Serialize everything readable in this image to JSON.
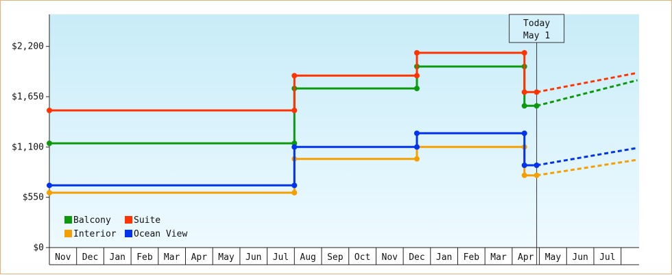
{
  "chart_data": {
    "type": "line",
    "step": true,
    "title": "",
    "xlabel": "",
    "ylabel": "",
    "ylim": [
      0,
      2550
    ],
    "yticks": [
      0,
      550,
      1100,
      1650,
      2200
    ],
    "ytick_labels": [
      "$0",
      "$550",
      "$1,100",
      "$1,650",
      "$2,200"
    ],
    "x_range": [
      0,
      21.6
    ],
    "months": [
      "Nov",
      "Dec",
      "Jan",
      "Feb",
      "Mar",
      "Apr",
      "May",
      "Jun",
      "Jul",
      "Aug",
      "Sep",
      "Oct",
      "Nov",
      "Dec",
      "Jan",
      "Feb",
      "Mar",
      "Apr",
      "May",
      "Jun",
      "Jul"
    ],
    "today": {
      "x": 17.9,
      "line1": "Today",
      "line2": "May 1"
    },
    "legend": {
      "placement": "bottom-left"
    },
    "background": {
      "top": "#c8ecf8",
      "bottom": "#eefaff"
    },
    "series": [
      {
        "name": "Balcony",
        "color": "#0c9a0c",
        "points": [
          [
            0,
            1140
          ],
          [
            9,
            1140
          ],
          [
            9,
            1740
          ],
          [
            13.5,
            1740
          ],
          [
            13.5,
            1980
          ],
          [
            17.45,
            1980
          ],
          [
            17.45,
            1550
          ],
          [
            17.9,
            1550
          ]
        ],
        "projection": [
          [
            17.9,
            1550
          ],
          [
            21.6,
            1830
          ]
        ]
      },
      {
        "name": "Suite",
        "color": "#ff3300",
        "points": [
          [
            0,
            1500
          ],
          [
            9,
            1500
          ],
          [
            9,
            1880
          ],
          [
            13.5,
            1880
          ],
          [
            13.5,
            2130
          ],
          [
            17.45,
            2130
          ],
          [
            17.45,
            1700
          ],
          [
            17.9,
            1700
          ]
        ],
        "projection": [
          [
            17.9,
            1700
          ],
          [
            21.6,
            1910
          ]
        ]
      },
      {
        "name": "Interior",
        "color": "#f5a000",
        "points": [
          [
            0,
            600
          ],
          [
            9,
            600
          ],
          [
            9,
            970
          ],
          [
            13.5,
            970
          ],
          [
            13.5,
            1100
          ],
          [
            17.45,
            1100
          ],
          [
            17.45,
            790
          ],
          [
            17.9,
            790
          ]
        ],
        "projection": [
          [
            17.9,
            790
          ],
          [
            21.6,
            960
          ]
        ]
      },
      {
        "name": "Ocean View",
        "color": "#0033ee",
        "points": [
          [
            0,
            680
          ],
          [
            9,
            680
          ],
          [
            9,
            1100
          ],
          [
            13.5,
            1100
          ],
          [
            13.5,
            1250
          ],
          [
            17.45,
            1250
          ],
          [
            17.45,
            900
          ],
          [
            17.9,
            900
          ]
        ],
        "projection": [
          [
            17.9,
            900
          ],
          [
            21.6,
            1090
          ]
        ]
      }
    ]
  }
}
